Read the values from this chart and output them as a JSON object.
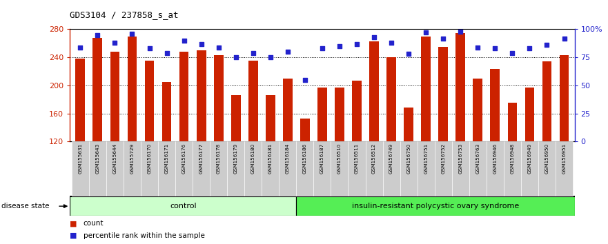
{
  "title": "GDS3104 / 237858_s_at",
  "samples": [
    "GSM155631",
    "GSM155643",
    "GSM155644",
    "GSM155729",
    "GSM156170",
    "GSM156171",
    "GSM156176",
    "GSM156177",
    "GSM156178",
    "GSM156179",
    "GSM156180",
    "GSM156181",
    "GSM156184",
    "GSM156186",
    "GSM156187",
    "GSM156510",
    "GSM156511",
    "GSM156512",
    "GSM156749",
    "GSM156750",
    "GSM156751",
    "GSM156752",
    "GSM156753",
    "GSM156763",
    "GSM156946",
    "GSM156948",
    "GSM156949",
    "GSM156950",
    "GSM156951"
  ],
  "counts": [
    238,
    268,
    248,
    270,
    235,
    205,
    248,
    250,
    243,
    186,
    235,
    186,
    210,
    153,
    197,
    197,
    207,
    263,
    240,
    168,
    270,
    255,
    275,
    210,
    223,
    175,
    197,
    234,
    243
  ],
  "percentile_ranks": [
    84,
    95,
    88,
    96,
    83,
    79,
    90,
    87,
    84,
    75,
    79,
    75,
    80,
    55,
    83,
    85,
    87,
    93,
    88,
    78,
    97,
    92,
    98,
    84,
    83,
    79,
    83,
    86,
    92
  ],
  "control_count": 13,
  "disease_count": 16,
  "control_label": "control",
  "disease_label": "insulin-resistant polycystic ovary syndrome",
  "disease_state_label": "disease state",
  "y_min": 120,
  "y_max": 280,
  "y_ticks": [
    120,
    160,
    200,
    240,
    280
  ],
  "pct_ticks": [
    0,
    25,
    50,
    75,
    100
  ],
  "pct_tick_labels": [
    "0",
    "25",
    "50",
    "75",
    "100%"
  ],
  "bar_color": "#CC2200",
  "dot_color": "#2222CC",
  "control_bg": "#CCFFCC",
  "disease_bg": "#55EE55",
  "xlabel_bg": "#CCCCCC",
  "legend_count_label": "count",
  "legend_pct_label": "percentile rank within the sample"
}
